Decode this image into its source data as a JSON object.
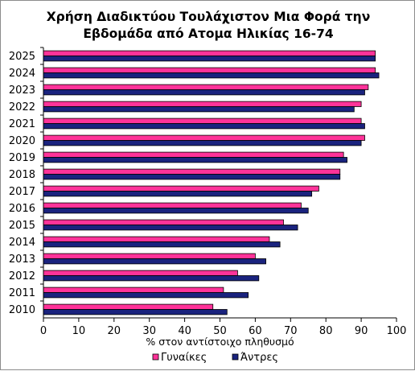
{
  "chart_data": {
    "type": "bar",
    "orientation": "horizontal",
    "title_lines": [
      "Χρήση Διαδικτύου Τουλάχιστον Μια Φορά την",
      "Εβδομάδα από Ατομα Ηλικίας 16-74"
    ],
    "xlabel": "% στον αντίστοιχο πληθυσμό",
    "ylabel": "",
    "xlim": [
      0,
      100
    ],
    "x_ticks": [
      0,
      10,
      20,
      30,
      40,
      50,
      60,
      70,
      80,
      90,
      100
    ],
    "categories": [
      "2025",
      "2024",
      "2023",
      "2022",
      "2021",
      "2020",
      "2019",
      "2018",
      "2017",
      "2016",
      "2015",
      "2014",
      "2013",
      "2012",
      "2011",
      "2010"
    ],
    "series": [
      {
        "name": "Γυναίκες",
        "color": "#ff3399",
        "values": [
          94,
          94,
          92,
          90,
          90,
          91,
          85,
          84,
          78,
          73,
          68,
          64,
          60,
          55,
          51,
          48
        ]
      },
      {
        "name": "Άντρες",
        "color": "#1a237e",
        "values": [
          94,
          95,
          91,
          88,
          91,
          90,
          86,
          84,
          76,
          75,
          72,
          67,
          63,
          61,
          58,
          52
        ]
      }
    ],
    "grid": false,
    "legend_position": "bottom"
  }
}
